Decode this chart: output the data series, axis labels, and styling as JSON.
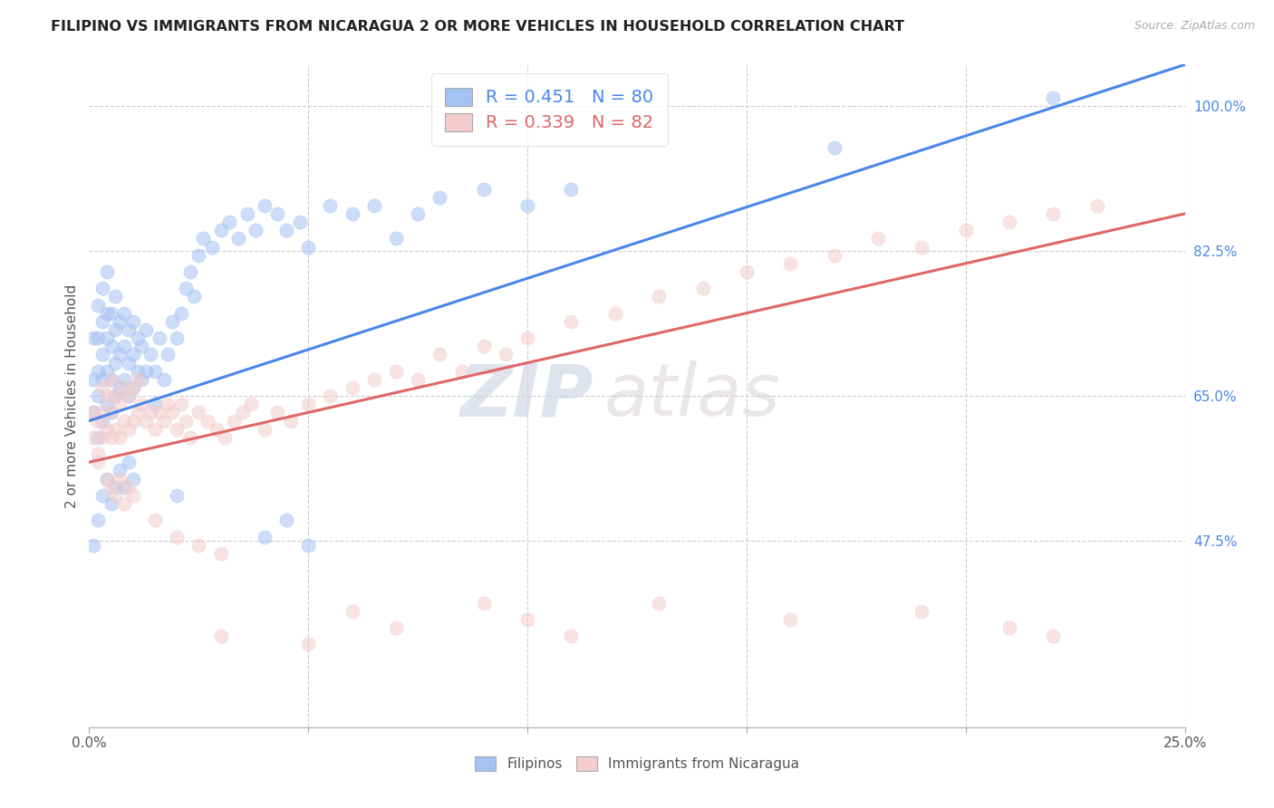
{
  "title": "FILIPINO VS IMMIGRANTS FROM NICARAGUA 2 OR MORE VEHICLES IN HOUSEHOLD CORRELATION CHART",
  "source": "Source: ZipAtlas.com",
  "ylabel": "2 or more Vehicles in Household",
  "xlim": [
    0.0,
    0.25
  ],
  "ylim": [
    0.25,
    1.05
  ],
  "x_tick_positions": [
    0.0,
    0.05,
    0.1,
    0.15,
    0.2,
    0.25
  ],
  "x_tick_labels": [
    "0.0%",
    "",
    "",
    "",
    "",
    "25.0%"
  ],
  "y_ticks_right": [
    0.475,
    0.65,
    0.825,
    1.0
  ],
  "y_tick_labels_right": [
    "47.5%",
    "65.0%",
    "82.5%",
    "100.0%"
  ],
  "legend_r1": "R = 0.451",
  "legend_n1": "N = 80",
  "legend_r2": "R = 0.339",
  "legend_n2": "N = 82",
  "color_filipino": "#a4c2f4",
  "color_nicaragua": "#f4cccc",
  "color_blue_line": "#4a86e8",
  "color_pink_line": "#e06666",
  "color_text_blue": "#4a86e8",
  "color_text_pink": "#e06666",
  "watermark_zip": "ZIP",
  "watermark_atlas": "atlas",
  "filipinos_x": [
    0.001,
    0.001,
    0.001,
    0.002,
    0.002,
    0.002,
    0.002,
    0.002,
    0.003,
    0.003,
    0.003,
    0.003,
    0.003,
    0.004,
    0.004,
    0.004,
    0.004,
    0.004,
    0.005,
    0.005,
    0.005,
    0.005,
    0.006,
    0.006,
    0.006,
    0.006,
    0.007,
    0.007,
    0.007,
    0.008,
    0.008,
    0.008,
    0.009,
    0.009,
    0.009,
    0.01,
    0.01,
    0.01,
    0.011,
    0.011,
    0.012,
    0.012,
    0.013,
    0.013,
    0.014,
    0.015,
    0.015,
    0.016,
    0.017,
    0.018,
    0.019,
    0.02,
    0.021,
    0.022,
    0.023,
    0.024,
    0.025,
    0.026,
    0.028,
    0.03,
    0.032,
    0.034,
    0.036,
    0.038,
    0.04,
    0.043,
    0.045,
    0.048,
    0.05,
    0.055,
    0.06,
    0.065,
    0.07,
    0.075,
    0.08,
    0.09,
    0.1,
    0.11,
    0.17,
    0.22
  ],
  "filipinos_y": [
    0.63,
    0.67,
    0.72,
    0.6,
    0.65,
    0.68,
    0.72,
    0.76,
    0.62,
    0.67,
    0.7,
    0.74,
    0.78,
    0.64,
    0.68,
    0.72,
    0.75,
    0.8,
    0.63,
    0.67,
    0.71,
    0.75,
    0.65,
    0.69,
    0.73,
    0.77,
    0.66,
    0.7,
    0.74,
    0.67,
    0.71,
    0.75,
    0.65,
    0.69,
    0.73,
    0.66,
    0.7,
    0.74,
    0.68,
    0.72,
    0.67,
    0.71,
    0.68,
    0.73,
    0.7,
    0.64,
    0.68,
    0.72,
    0.67,
    0.7,
    0.74,
    0.72,
    0.75,
    0.78,
    0.8,
    0.77,
    0.82,
    0.84,
    0.83,
    0.85,
    0.86,
    0.84,
    0.87,
    0.85,
    0.88,
    0.87,
    0.85,
    0.86,
    0.83,
    0.88,
    0.87,
    0.88,
    0.84,
    0.87,
    0.89,
    0.9,
    0.88,
    0.9,
    0.95,
    1.01
  ],
  "filipinos_x_low": [
    0.001,
    0.002,
    0.003,
    0.004,
    0.005,
    0.006,
    0.007,
    0.008,
    0.009,
    0.01,
    0.02,
    0.04,
    0.045,
    0.05
  ],
  "filipinos_y_low": [
    0.47,
    0.5,
    0.53,
    0.55,
    0.52,
    0.54,
    0.56,
    0.54,
    0.57,
    0.55,
    0.53,
    0.48,
    0.5,
    0.47
  ],
  "nicaragua_x": [
    0.001,
    0.001,
    0.002,
    0.002,
    0.003,
    0.003,
    0.003,
    0.004,
    0.004,
    0.005,
    0.005,
    0.005,
    0.006,
    0.006,
    0.007,
    0.007,
    0.008,
    0.008,
    0.009,
    0.009,
    0.01,
    0.01,
    0.011,
    0.011,
    0.012,
    0.013,
    0.014,
    0.015,
    0.016,
    0.017,
    0.018,
    0.019,
    0.02,
    0.021,
    0.022,
    0.023,
    0.025,
    0.027,
    0.029,
    0.031,
    0.033,
    0.035,
    0.037,
    0.04,
    0.043,
    0.046,
    0.05,
    0.055,
    0.06,
    0.065,
    0.07,
    0.075,
    0.08,
    0.085,
    0.09,
    0.095,
    0.1,
    0.11,
    0.12,
    0.13,
    0.14,
    0.15,
    0.16,
    0.17,
    0.18,
    0.19,
    0.2,
    0.21,
    0.22,
    0.23
  ],
  "nicaragua_y": [
    0.6,
    0.63,
    0.58,
    0.62,
    0.6,
    0.63,
    0.66,
    0.61,
    0.65,
    0.6,
    0.63,
    0.67,
    0.61,
    0.65,
    0.6,
    0.64,
    0.62,
    0.66,
    0.61,
    0.65,
    0.62,
    0.66,
    0.63,
    0.67,
    0.64,
    0.62,
    0.63,
    0.61,
    0.63,
    0.62,
    0.64,
    0.63,
    0.61,
    0.64,
    0.62,
    0.6,
    0.63,
    0.62,
    0.61,
    0.6,
    0.62,
    0.63,
    0.64,
    0.61,
    0.63,
    0.62,
    0.64,
    0.65,
    0.66,
    0.67,
    0.68,
    0.67,
    0.7,
    0.68,
    0.71,
    0.7,
    0.72,
    0.74,
    0.75,
    0.77,
    0.78,
    0.8,
    0.81,
    0.82,
    0.84,
    0.83,
    0.85,
    0.86,
    0.87,
    0.88
  ],
  "nicaragua_x_low": [
    0.002,
    0.004,
    0.005,
    0.006,
    0.007,
    0.008,
    0.009,
    0.01,
    0.015,
    0.02,
    0.025,
    0.03
  ],
  "nicaragua_y_low": [
    0.57,
    0.55,
    0.54,
    0.53,
    0.55,
    0.52,
    0.54,
    0.53,
    0.5,
    0.48,
    0.47,
    0.46
  ],
  "nicaragua_x_vlow": [
    0.03,
    0.05,
    0.06,
    0.07,
    0.09,
    0.1,
    0.11,
    0.13,
    0.16,
    0.19,
    0.21,
    0.22
  ],
  "nicaragua_y_vlow": [
    0.36,
    0.35,
    0.39,
    0.37,
    0.4,
    0.38,
    0.36,
    0.4,
    0.38,
    0.39,
    0.37,
    0.36
  ]
}
